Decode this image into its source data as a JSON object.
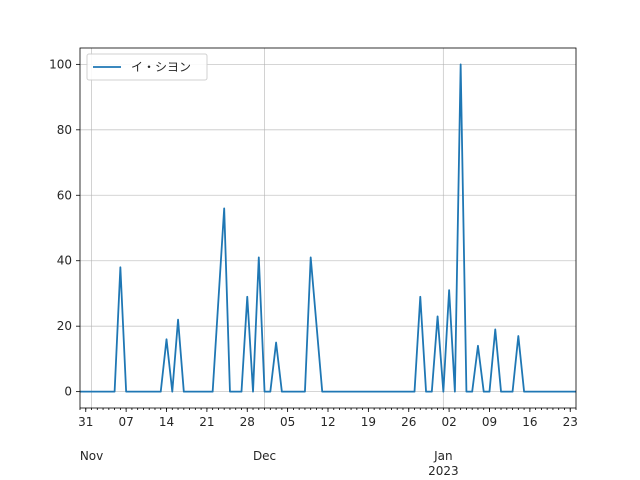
{
  "chart_data": {
    "type": "line",
    "title": "",
    "xlabel": "",
    "ylabel": "",
    "grid": true,
    "legend_placement": "upper left",
    "colors": {
      "series": "#1f77b4"
    },
    "x_start": "2022-10-30",
    "x_end": "2023-01-24",
    "ylim": [
      -5,
      105
    ],
    "y_ticks": [
      0,
      20,
      40,
      60,
      80,
      100
    ],
    "x_major_ticks": [
      {
        "date": "2022-10-31",
        "label": "31"
      },
      {
        "date": "2022-11-07",
        "label": "07"
      },
      {
        "date": "2022-11-14",
        "label": "14"
      },
      {
        "date": "2022-11-21",
        "label": "21"
      },
      {
        "date": "2022-11-28",
        "label": "28"
      },
      {
        "date": "2022-12-05",
        "label": "05"
      },
      {
        "date": "2022-12-12",
        "label": "12"
      },
      {
        "date": "2022-12-19",
        "label": "19"
      },
      {
        "date": "2022-12-26",
        "label": "26"
      },
      {
        "date": "2023-01-02",
        "label": "02"
      },
      {
        "date": "2023-01-09",
        "label": "09"
      },
      {
        "date": "2023-01-16",
        "label": "16"
      },
      {
        "date": "2023-01-23",
        "label": "23"
      }
    ],
    "x_month_labels": [
      {
        "date": "2022-11-01",
        "label": "Nov"
      },
      {
        "date": "2022-12-01",
        "label": "Dec"
      },
      {
        "date": "2023-01-01",
        "label": "Jan",
        "year": "2023"
      }
    ],
    "series": [
      {
        "name": "イ・シヨン",
        "points": [
          [
            "2022-10-30",
            0
          ],
          [
            "2022-11-05",
            0
          ],
          [
            "2022-11-06",
            38
          ],
          [
            "2022-11-07",
            0
          ],
          [
            "2022-11-13",
            0
          ],
          [
            "2022-11-14",
            16
          ],
          [
            "2022-11-15",
            0
          ],
          [
            "2022-11-16",
            22
          ],
          [
            "2022-11-17",
            0
          ],
          [
            "2022-11-22",
            0
          ],
          [
            "2022-11-24",
            56
          ],
          [
            "2022-11-25",
            0
          ],
          [
            "2022-11-27",
            0
          ],
          [
            "2022-11-28",
            29
          ],
          [
            "2022-11-29",
            0
          ],
          [
            "2022-11-30",
            41
          ],
          [
            "2022-12-01",
            0
          ],
          [
            "2022-12-02",
            0
          ],
          [
            "2022-12-03",
            15
          ],
          [
            "2022-12-04",
            0
          ],
          [
            "2022-12-08",
            0
          ],
          [
            "2022-12-09",
            41
          ],
          [
            "2022-12-11",
            0
          ],
          [
            "2022-12-27",
            0
          ],
          [
            "2022-12-28",
            29
          ],
          [
            "2022-12-29",
            0
          ],
          [
            "2022-12-30",
            0
          ],
          [
            "2022-12-31",
            23
          ],
          [
            "2023-01-01",
            0
          ],
          [
            "2023-01-02",
            31
          ],
          [
            "2023-01-03",
            0
          ],
          [
            "2023-01-04",
            100
          ],
          [
            "2023-01-05",
            0
          ],
          [
            "2023-01-06",
            0
          ],
          [
            "2023-01-07",
            14
          ],
          [
            "2023-01-08",
            0
          ],
          [
            "2023-01-09",
            0
          ],
          [
            "2023-01-10",
            19
          ],
          [
            "2023-01-11",
            0
          ],
          [
            "2023-01-13",
            0
          ],
          [
            "2023-01-14",
            17
          ],
          [
            "2023-01-15",
            0
          ],
          [
            "2023-01-24",
            0
          ]
        ]
      }
    ]
  }
}
